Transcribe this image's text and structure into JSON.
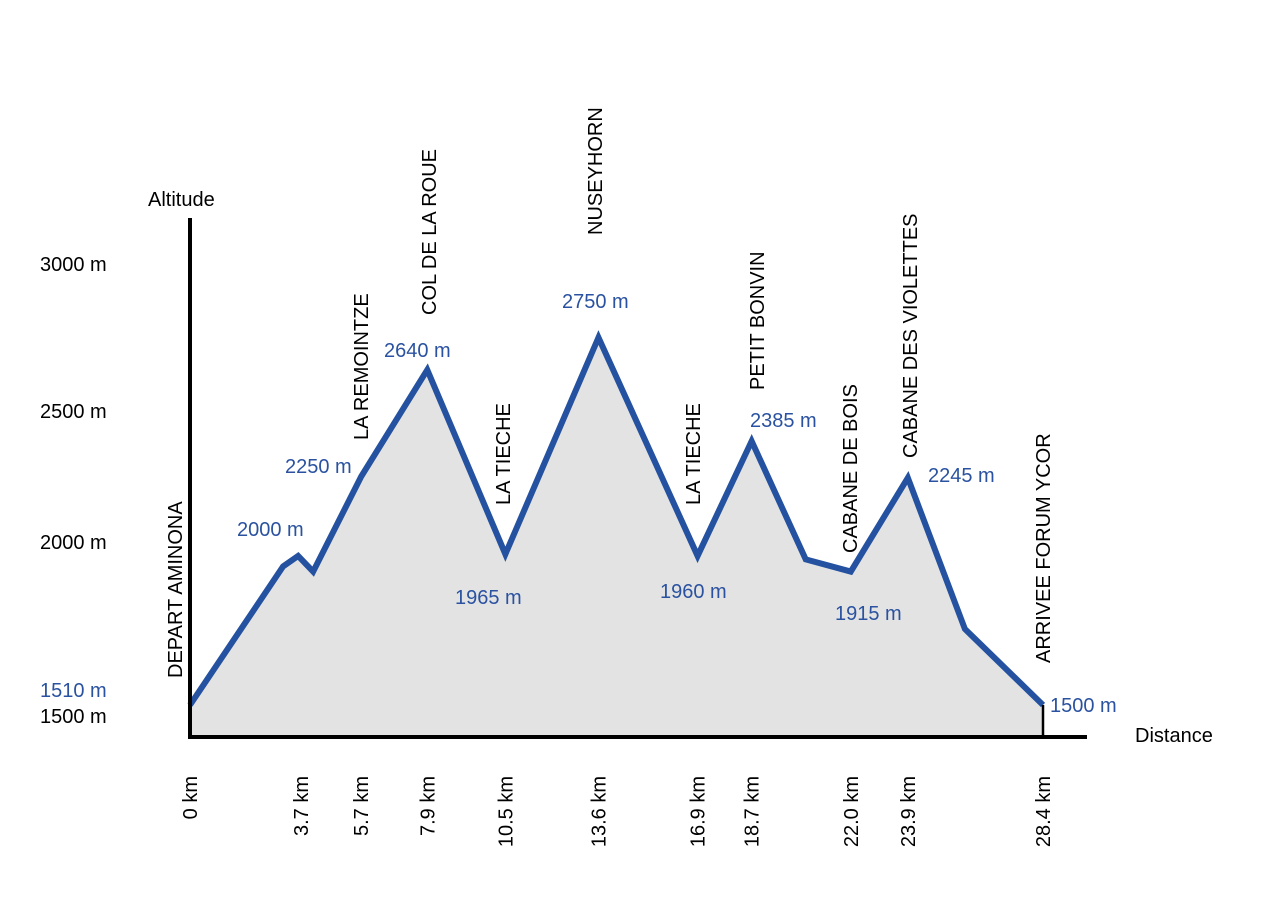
{
  "chart_data": {
    "type": "area",
    "title": "",
    "xlabel": "Distance",
    "ylabel": "Altitude",
    "colors": {
      "line": "#2451a0",
      "fill": "#e3e3e3",
      "axis": "#000000",
      "labels": "#2a52a0"
    },
    "y_ticks": [
      {
        "value": 3000,
        "label": "3000 m"
      },
      {
        "value": 2500,
        "label": "2500 m"
      },
      {
        "value": 2000,
        "label": "2000 m"
      },
      {
        "value": 1500,
        "label": "1500 m"
      }
    ],
    "x_ticks": [
      {
        "value": 0,
        "label": "0 km"
      },
      {
        "value": 3.7,
        "label": "3.7 km"
      },
      {
        "value": 5.7,
        "label": "5.7 km"
      },
      {
        "value": 7.9,
        "label": "7.9 km"
      },
      {
        "value": 10.5,
        "label": "10.5 km"
      },
      {
        "value": 13.6,
        "label": "13.6 km"
      },
      {
        "value": 16.9,
        "label": "16.9 km"
      },
      {
        "value": 18.7,
        "label": "18.7 km"
      },
      {
        "value": 22.0,
        "label": "22.0 km"
      },
      {
        "value": 23.9,
        "label": "23.9 km"
      },
      {
        "value": 28.4,
        "label": "28.4 km"
      }
    ],
    "profile": [
      {
        "km": 0,
        "alt": 1510
      },
      {
        "km": 3.1,
        "alt": 1930
      },
      {
        "km": 3.6,
        "alt": 1960
      },
      {
        "km": 4.1,
        "alt": 1915
      },
      {
        "km": 5.7,
        "alt": 2250
      },
      {
        "km": 7.9,
        "alt": 2640
      },
      {
        "km": 10.5,
        "alt": 1965
      },
      {
        "km": 13.6,
        "alt": 2750
      },
      {
        "km": 16.9,
        "alt": 1960
      },
      {
        "km": 18.7,
        "alt": 2385
      },
      {
        "km": 20.5,
        "alt": 1950
      },
      {
        "km": 22.0,
        "alt": 1915
      },
      {
        "km": 23.9,
        "alt": 2245
      },
      {
        "km": 25.8,
        "alt": 1750
      },
      {
        "km": 28.4,
        "alt": 1500
      }
    ],
    "altitude_labels": [
      "1510 m",
      "2000 m",
      "2250 m",
      "2640 m",
      "1965 m",
      "2750 m",
      "1960 m",
      "2385 m",
      "1915 m",
      "2245 m",
      "1500 m"
    ],
    "waypoints": [
      "DEPART AMINONA",
      "LA REMOINTZE",
      "COL DE LA ROUE",
      "LA TIECHE",
      "NUSEYHORN",
      "LA TIECHE",
      "PETIT BONVIN",
      "CABANE DE BOIS",
      "CABANE DES VIOLETTES",
      "ARRIVEE FORUM YCOR"
    ]
  }
}
